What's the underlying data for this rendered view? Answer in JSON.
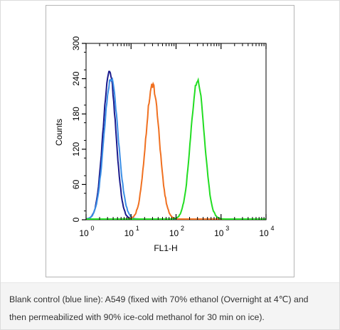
{
  "chart_data": {
    "type": "line",
    "title": "",
    "xlabel": "FL1-H",
    "ylabel": "Counts",
    "x_scale": "log",
    "xlim": [
      1,
      10000
    ],
    "ylim": [
      0,
      300
    ],
    "grid": false,
    "legend": "none",
    "x_ticks": [
      {
        "value": 1,
        "base": "10",
        "exp": "0"
      },
      {
        "value": 10,
        "base": "10",
        "exp": "1"
      },
      {
        "value": 100,
        "base": "10",
        "exp": "2"
      },
      {
        "value": 1000,
        "base": "10",
        "exp": "3"
      },
      {
        "value": 10000,
        "base": "10",
        "exp": "4"
      }
    ],
    "y_ticks": [
      {
        "value": 0,
        "label": "0"
      },
      {
        "value": 60,
        "label": "60"
      },
      {
        "value": 120,
        "label": "120"
      },
      {
        "value": 180,
        "label": "180"
      },
      {
        "value": 240,
        "label": "240"
      },
      {
        "value": 300,
        "label": "300"
      }
    ],
    "series": [
      {
        "color": "#1a1a8c",
        "peak_x": 3.3,
        "peak_y": 252,
        "width": 0.14
      },
      {
        "color": "#3a8ee6",
        "peak_x": 3.6,
        "peak_y": 238,
        "width": 0.155
      },
      {
        "color": "#f07020",
        "peak_x": 30,
        "peak_y": 228,
        "width": 0.15
      },
      {
        "color": "#22dd22",
        "peak_x": 300,
        "peak_y": 236,
        "width": 0.15
      }
    ]
  },
  "caption": {
    "line1": "Blank control (blue line): A549 (fixed with 70% ethanol (Overnight at 4℃) and",
    "line2": "then permeabilized with 90% ice-cold methanol for 30 min on ice)."
  }
}
